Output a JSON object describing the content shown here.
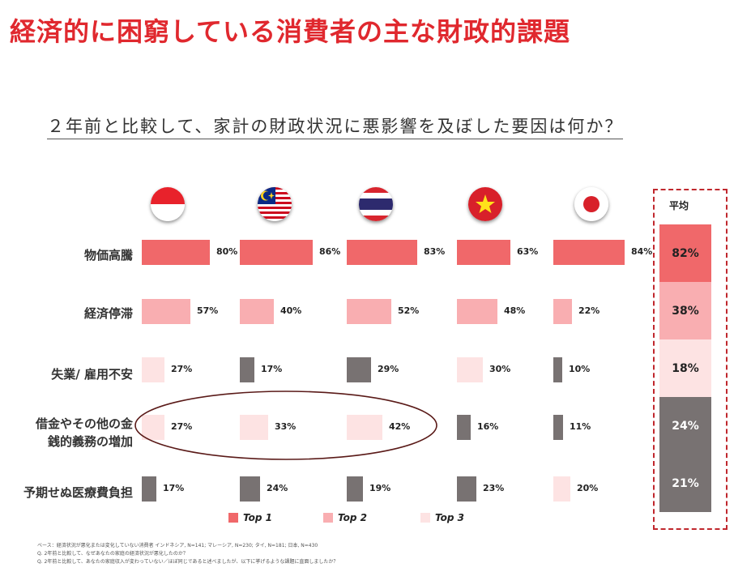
{
  "title": "経済的に困窮している消費者の主な財政的課題",
  "question": "２年前と比較して、家計の財政状況に悪影響を及ぼした要因は何か？",
  "countries": [
    "Indonesia",
    "Malaysia",
    "Thailand",
    "Vietnam",
    "Japan"
  ],
  "average": {
    "title": "平均",
    "values": [
      "82%",
      "38%",
      "18%",
      "24%",
      "21%"
    ],
    "colors": [
      "#f0686a",
      "#f9aeb1",
      "#fde3e3",
      "#787272",
      "#787272"
    ]
  },
  "legend": [
    {
      "label": "Top 1",
      "color": "#f0686a"
    },
    {
      "label": "Top 2",
      "color": "#f9aeb1"
    },
    {
      "label": "Top 3",
      "color": "#fde3e3"
    }
  ],
  "notes": [
    "ベース：経済状況が悪化または変化していない消費者 インドネシア, N=141; マレーシア, N=230; タイ, N=181; 日本, N=430",
    "Q. 2年前と比較して、なぜあなたの家庭の経済状況が悪化したのか？",
    "Q. 2年前と比較して、あなたの家庭収入が変わっていない／ほぼ同じであると述べましたが、以下に挙げるような課題に直面しましたか？"
  ],
  "colors": {
    "top1": "#f0686a",
    "top2": "#f9aeb1",
    "top3": "#fde3e3",
    "other": "#787272",
    "title_red": "#e0282e",
    "ellipse": "#5a1a18"
  },
  "chart_data": {
    "type": "bar",
    "orientation": "horizontal",
    "categories": [
      "物価高騰",
      "経済停滞",
      "失業/ 雇用不安",
      "借金やその他の金\n銭的義務の増加",
      "予期せぬ医療費負担"
    ],
    "category_lines": [
      [
        "物価高騰"
      ],
      [
        "経済停滞"
      ],
      [
        "失業/ 雇用不安"
      ],
      [
        "借金やその他の金",
        "銭的義務の増加"
      ],
      [
        "予期せぬ医療費負担"
      ]
    ],
    "series": [
      {
        "values": [
          80,
          57,
          27,
          27,
          17
        ],
        "labels": [
          "80%",
          "57%",
          "27%",
          "27%",
          "17%"
        ],
        "rank": [
          "top1",
          "top2",
          "top3",
          "top3",
          "other"
        ]
      },
      {
        "values": [
          86,
          40,
          17,
          33,
          24
        ],
        "labels": [
          "86%",
          "40%",
          "17%",
          "33%",
          "24%"
        ],
        "rank": [
          "top1",
          "top2",
          "other",
          "top3",
          "other"
        ]
      },
      {
        "values": [
          83,
          52,
          29,
          42,
          19
        ],
        "labels": [
          "83%",
          "52%",
          "29%",
          "42%",
          "19%"
        ],
        "rank": [
          "top1",
          "top2",
          "other",
          "top3",
          "other"
        ]
      },
      {
        "values": [
          63,
          48,
          30,
          16,
          23
        ],
        "labels": [
          "63%",
          "48%",
          "30%",
          "16%",
          "23%"
        ],
        "rank": [
          "top1",
          "top2",
          "top3",
          "other",
          "other"
        ]
      },
      {
        "values": [
          84,
          22,
          10,
          11,
          20
        ],
        "labels": [
          "84%",
          "22%",
          "10%",
          "11%",
          "20%"
        ],
        "rank": [
          "top1",
          "top2",
          "other",
          "other",
          "top3"
        ]
      }
    ],
    "xlim": [
      0,
      100
    ],
    "grid": false
  }
}
